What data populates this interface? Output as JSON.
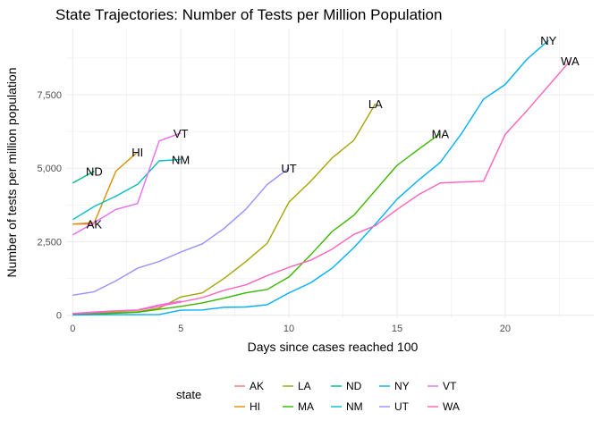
{
  "chart_data": {
    "type": "line",
    "title": "State Trajectories: Number of Tests per Million Population",
    "xlabel": "Days since cases reached 100",
    "ylabel": "Number of tests per million population",
    "xlim": [
      -0.3,
      24.1
    ],
    "ylim": [
      -100,
      9750
    ],
    "x_ticks": [
      0,
      5,
      10,
      15,
      20
    ],
    "x_tick_labels": [
      "0",
      "5",
      "10",
      "15",
      "20"
    ],
    "y_ticks": [
      0,
      2500,
      5000,
      7500
    ],
    "y_tick_labels": [
      "0",
      "2,500",
      "5,000",
      "7,500"
    ],
    "grid": true,
    "legend": {
      "title": "state",
      "position": "bottom",
      "order": [
        "AK",
        "HI",
        "LA",
        "MA",
        "ND",
        "NM",
        "NY",
        "UT",
        "VT",
        "WA"
      ]
    },
    "series": [
      {
        "name": "AK",
        "color": "#F8766D",
        "label": "AK",
        "x": [
          0,
          1
        ],
        "y": [
          3100,
          3100
        ]
      },
      {
        "name": "HI",
        "color": "#D89000",
        "label": "HI",
        "x": [
          0,
          1,
          2,
          3
        ],
        "y": [
          3100,
          3150,
          4900,
          5550
        ]
      },
      {
        "name": "LA",
        "color": "#A3A500",
        "label": "LA",
        "x": [
          0,
          1,
          2,
          3,
          4,
          5,
          6,
          7,
          8,
          9,
          10,
          11,
          12,
          13,
          14
        ],
        "y": [
          30,
          60,
          100,
          120,
          240,
          620,
          760,
          1250,
          1820,
          2450,
          3850,
          4550,
          5350,
          5950,
          7200
        ]
      },
      {
        "name": "MA",
        "color": "#39B600",
        "label": "MA",
        "x": [
          0,
          1,
          2,
          3,
          4,
          5,
          6,
          7,
          8,
          9,
          10,
          11,
          12,
          13,
          14,
          15,
          16,
          17
        ],
        "y": [
          20,
          40,
          70,
          100,
          200,
          300,
          420,
          580,
          760,
          880,
          1300,
          2050,
          2850,
          3400,
          4250,
          5100,
          5650,
          6180
        ]
      },
      {
        "name": "ND",
        "color": "#00BF7D",
        "label": "ND",
        "x": [
          0,
          1
        ],
        "y": [
          4500,
          4900
        ]
      },
      {
        "name": "NM",
        "color": "#00BFC4",
        "label": "NM",
        "x": [
          0,
          1,
          2,
          3,
          4,
          5
        ],
        "y": [
          3250,
          3700,
          4050,
          4450,
          5250,
          5300
        ]
      },
      {
        "name": "NY",
        "color": "#00B0F6",
        "label": "NY",
        "x": [
          0,
          1,
          2,
          3,
          4,
          5,
          6,
          7,
          8,
          9,
          10,
          11,
          12,
          13,
          14,
          15,
          16,
          17,
          18,
          19,
          20,
          21,
          22
        ],
        "y": [
          10,
          15,
          20,
          20,
          25,
          170,
          180,
          270,
          280,
          360,
          760,
          1100,
          1600,
          2300,
          3100,
          3950,
          4600,
          5200,
          6200,
          7350,
          7850,
          8700,
          9350
        ]
      },
      {
        "name": "UT",
        "color": "#9590FF",
        "label": "UT",
        "x": [
          0,
          1,
          2,
          3,
          4,
          5,
          6,
          7,
          8,
          9,
          10
        ],
        "y": [
          680,
          800,
          1170,
          1600,
          1830,
          2150,
          2430,
          2950,
          3600,
          4450,
          5000
        ]
      },
      {
        "name": "VT",
        "color": "#E76BF3",
        "label": "VT",
        "x": [
          0,
          1,
          2,
          3,
          4,
          5
        ],
        "y": [
          60,
          110,
          150,
          180,
          350,
          480
        ]
      },
      {
        "name": "VT",
        "color": "#E76BF3",
        "label": "VT",
        "x": [
          0,
          1,
          2,
          3,
          4,
          5
        ],
        "y": [
          2730,
          3150,
          3600,
          3800,
          5930,
          6200
        ]
      },
      {
        "name": "WA",
        "color": "#FF62BC",
        "label": "WA",
        "x": [
          0,
          1,
          2,
          3,
          4,
          5,
          6,
          7,
          8,
          9,
          10,
          11,
          12,
          13,
          14,
          15,
          16,
          17,
          18,
          19,
          20,
          21,
          22,
          23
        ],
        "y": [
          50,
          90,
          140,
          170,
          300,
          450,
          600,
          850,
          1030,
          1350,
          1630,
          1870,
          2250,
          2750,
          3050,
          3600,
          4100,
          4500,
          4530,
          4560,
          6150,
          6950,
          7800,
          8650
        ]
      }
    ]
  }
}
